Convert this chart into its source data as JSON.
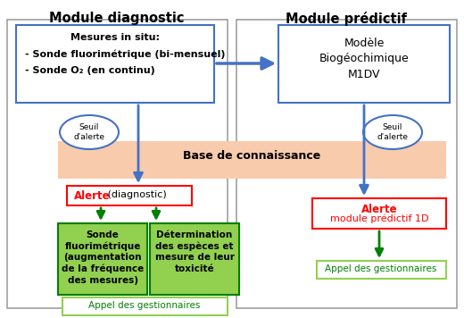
{
  "bg_color": "#ffffff",
  "module_diag_title": "Module diagnostic",
  "module_pred_title": "Module prédictif",
  "seuil_text": "Seuil\nd'alerte",
  "base_connaissance_text": "Base de connaissance",
  "alerte_diag_bold": "Alerte",
  "alerte_diag_normal": " (diagnostic)",
  "alerte_pred_line1": "Alerte",
  "alerte_pred_line2": "module prédictif 1D",
  "box_sonde_text": "Sonde\nfluorimétrique\n(augmentation\nde la fréquence\ndes mesures)",
  "box_det_text": "Détermination\ndes espèces et\nmesure de leur\ntoxicité",
  "appel_diag_text": "Appel des gestionnaires",
  "appel_pred_text": "Appel des gestionnaires",
  "color_blue": "#4472c4",
  "color_red": "#ff0000",
  "color_green_dark": "#008000",
  "color_green_fill": "#92d050",
  "color_orange_fill": "#f8cbad",
  "color_outer_border": "#a0a0a0",
  "color_alerte_border": "#ff0000",
  "color_appel_border": "#92d050"
}
